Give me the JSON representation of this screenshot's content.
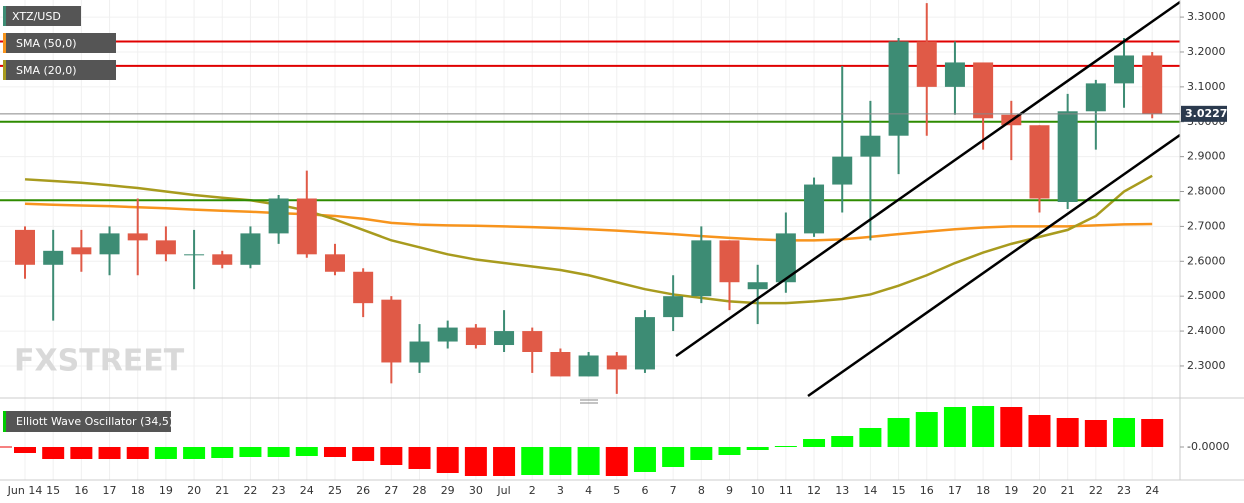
{
  "chart_data": {
    "type": "candlestick",
    "symbol": "XTZ/USD",
    "categories": [
      "Jun 14",
      "15",
      "16",
      "17",
      "18",
      "19",
      "20",
      "21",
      "22",
      "23",
      "24",
      "25",
      "26",
      "27",
      "28",
      "29",
      "30",
      "Jul",
      "2",
      "3",
      "4",
      "5",
      "6",
      "7",
      "8",
      "9",
      "10",
      "11",
      "12",
      "13",
      "14",
      "15",
      "16",
      "17",
      "18",
      "19",
      "20",
      "21",
      "22",
      "23",
      "24"
    ],
    "open": [
      2.69,
      2.59,
      2.64,
      2.62,
      2.68,
      2.66,
      2.62,
      2.62,
      2.59,
      2.68,
      2.78,
      2.62,
      2.57,
      2.49,
      2.31,
      2.37,
      2.41,
      2.36,
      2.4,
      2.34,
      2.27,
      2.33,
      2.29,
      2.44,
      2.5,
      2.66,
      2.52,
      2.54,
      2.68,
      2.82,
      2.9,
      2.96,
      3.23,
      3.1,
      3.17,
      3.02,
      2.99,
      2.77,
      3.03,
      3.11,
      3.19
    ],
    "high": [
      2.7,
      2.69,
      2.69,
      2.7,
      2.78,
      2.7,
      2.69,
      2.63,
      2.7,
      2.79,
      2.86,
      2.65,
      2.58,
      2.5,
      2.42,
      2.43,
      2.42,
      2.46,
      2.41,
      2.35,
      2.34,
      2.34,
      2.46,
      2.56,
      2.7,
      2.66,
      2.59,
      2.74,
      2.84,
      3.16,
      3.06,
      3.24,
      3.34,
      3.23,
      3.17,
      3.06,
      2.99,
      3.08,
      3.12,
      3.24,
      3.2
    ],
    "low": [
      2.55,
      2.43,
      2.57,
      2.56,
      2.56,
      2.6,
      2.52,
      2.58,
      2.58,
      2.65,
      2.61,
      2.56,
      2.44,
      2.25,
      2.28,
      2.35,
      2.35,
      2.34,
      2.28,
      2.27,
      2.27,
      2.22,
      2.28,
      2.4,
      2.48,
      2.46,
      2.42,
      2.51,
      2.67,
      2.74,
      2.66,
      2.85,
      2.96,
      3.02,
      2.92,
      2.89,
      2.74,
      2.75,
      2.92,
      3.04,
      3.01
    ],
    "close": [
      2.59,
      2.63,
      2.62,
      2.68,
      2.66,
      2.62,
      2.62,
      2.59,
      2.68,
      2.78,
      2.62,
      2.57,
      2.48,
      2.31,
      2.37,
      2.41,
      2.36,
      2.4,
      2.34,
      2.27,
      2.33,
      2.29,
      2.44,
      2.5,
      2.66,
      2.54,
      2.54,
      2.68,
      2.82,
      2.9,
      2.96,
      3.23,
      3.1,
      3.17,
      3.01,
      2.99,
      2.78,
      3.03,
      3.11,
      3.19,
      3.0227
    ],
    "up_color": "#3d8c74",
    "down_color": "#e05a47",
    "series": [
      {
        "name": "SMA (50,0)",
        "color": "#f7941d",
        "values": [
          2.765,
          2.762,
          2.76,
          2.758,
          2.755,
          2.752,
          2.748,
          2.745,
          2.742,
          2.738,
          2.735,
          2.73,
          2.722,
          2.71,
          2.705,
          2.703,
          2.702,
          2.7,
          2.698,
          2.695,
          2.692,
          2.688,
          2.683,
          2.678,
          2.672,
          2.667,
          2.663,
          2.66,
          2.66,
          2.663,
          2.67,
          2.678,
          2.685,
          2.692,
          2.697,
          2.7,
          2.7,
          2.7,
          2.703,
          2.706,
          2.707
        ]
      },
      {
        "name": "SMA (20,0)",
        "color": "#a89b1e",
        "values": [
          2.835,
          2.83,
          2.825,
          2.818,
          2.81,
          2.8,
          2.79,
          2.782,
          2.775,
          2.762,
          2.745,
          2.72,
          2.69,
          2.66,
          2.64,
          2.62,
          2.605,
          2.595,
          2.585,
          2.575,
          2.56,
          2.54,
          2.52,
          2.505,
          2.495,
          2.485,
          2.48,
          2.48,
          2.485,
          2.492,
          2.505,
          2.53,
          2.56,
          2.595,
          2.625,
          2.65,
          2.67,
          2.69,
          2.73,
          2.8,
          2.845
        ]
      }
    ],
    "levels": [
      {
        "value": 3.23,
        "color": "#e00000"
      },
      {
        "value": 3.16,
        "color": "#e00000"
      },
      {
        "value": 3.0,
        "color": "#2e8b00"
      },
      {
        "value": 2.775,
        "color": "#2e8b00"
      }
    ],
    "ylim": [
      2.211,
      3.349
    ],
    "yticks": [
      {
        "value": 2.3,
        "label": "2.3000"
      },
      {
        "value": 2.4,
        "label": "2.4000"
      },
      {
        "value": 2.5,
        "label": "2.5000"
      },
      {
        "value": 2.6,
        "label": "2.6000"
      },
      {
        "value": 2.7,
        "label": "2.7000"
      },
      {
        "value": 2.8,
        "label": "2.8000"
      },
      {
        "value": 2.9,
        "label": "2.9000"
      },
      {
        "value": 3.0,
        "label": "3.0000"
      },
      {
        "value": 3.1,
        "label": "3.1000"
      },
      {
        "value": 3.2,
        "label": "3.2000"
      },
      {
        "value": 3.3,
        "label": "3.3000"
      }
    ],
    "grid": true,
    "watermark": "FXSTREET",
    "oscillator": {
      "type": "bar",
      "name": "Elliott Wave Oscillator (34,5)",
      "values": [
        -0.06,
        -0.12,
        -0.12,
        -0.12,
        -0.12,
        -0.12,
        -0.12,
        -0.11,
        -0.1,
        -0.1,
        -0.09,
        -0.1,
        -0.14,
        -0.18,
        -0.22,
        -0.26,
        -0.29,
        -0.29,
        -0.28,
        -0.28,
        -0.28,
        -0.29,
        -0.25,
        -0.2,
        -0.13,
        -0.08,
        -0.03,
        0.01,
        0.08,
        0.11,
        0.19,
        0.29,
        0.35,
        0.4,
        0.41,
        0.4,
        0.32,
        0.29,
        0.27,
        0.29,
        0.28
      ],
      "bar_colors": [
        "#ff0000",
        "#ff0000",
        "#ff0000",
        "#ff0000",
        "#ff0000",
        "#00ff00",
        "#00ff00",
        "#00ff00",
        "#00ff00",
        "#00ff00",
        "#00ff00",
        "#ff0000",
        "#ff0000",
        "#ff0000",
        "#ff0000",
        "#ff0000",
        "#ff0000",
        "#ff0000",
        "#00ff00",
        "#00ff00",
        "#00ff00",
        "#ff0000",
        "#00ff00",
        "#00ff00",
        "#00ff00",
        "#00ff00",
        "#00ff00",
        "#00ff00",
        "#00ff00",
        "#00ff00",
        "#00ff00",
        "#00ff00",
        "#00ff00",
        "#00ff00",
        "#00ff00",
        "#ff0000",
        "#ff0000",
        "#ff0000",
        "#ff0000",
        "#00ff00",
        "#ff0000"
      ],
      "ylim": [
        -0.32,
        0.42
      ],
      "yticks": [
        {
          "value": 0,
          "label": "-0.0000"
        }
      ]
    }
  }
}
